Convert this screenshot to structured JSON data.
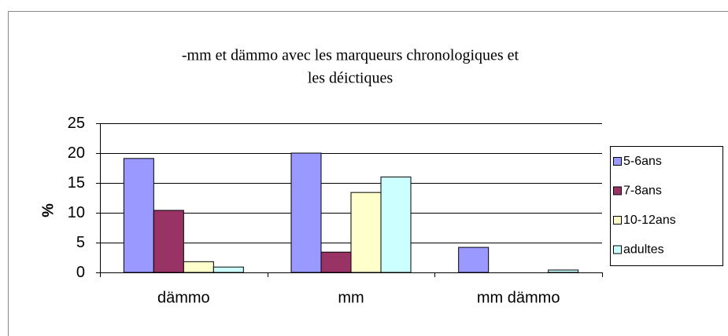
{
  "chart_data": {
    "type": "bar",
    "title": [
      "-mm et dämmo avec les marqueurs chronologiques et",
      "les déictiques"
    ],
    "y_label": "%",
    "categories": [
      "dämmo",
      "mm",
      "mm dämmo"
    ],
    "series": [
      {
        "name": "5-6ans",
        "color": "#9999ff",
        "values": [
          19.1,
          20,
          4.2
        ]
      },
      {
        "name": "7-8ans",
        "color": "#993366",
        "values": [
          10.4,
          3.4,
          0
        ]
      },
      {
        "name": "10-12ans",
        "color": "#ffffcc",
        "values": [
          1.8,
          13.4,
          0
        ]
      },
      {
        "name": "adultes",
        "color": "#ccffff",
        "values": [
          0.9,
          16,
          0.4
        ]
      }
    ],
    "ylim": [
      0,
      25
    ],
    "yticks": [
      0,
      5,
      10,
      15,
      20,
      25
    ],
    "grid": true,
    "legend": "right"
  }
}
